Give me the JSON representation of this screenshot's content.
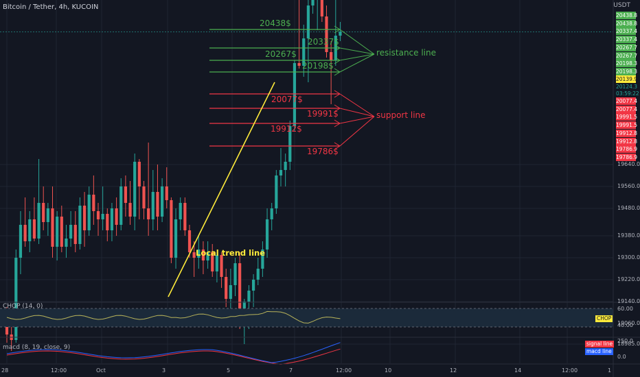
{
  "header": {
    "symbol": "Bitcoin / Tether, 4h, KUCOIN",
    "currency": "USDT"
  },
  "colors": {
    "background": "#131722",
    "bull": "#26a69a",
    "bear": "#ef5350",
    "resistance": "#4caf50",
    "support": "#f23645",
    "trend": "#ffeb3b",
    "chop": "#b9b45a",
    "signal": "#f23645",
    "macd": "#2962ff"
  },
  "price_axis": {
    "labels": [
      "19640.0",
      "19560.0",
      "19480.0",
      "19380.0",
      "19300.0",
      "19220.0",
      "19140.0",
      "19060.0",
      "18985.0"
    ]
  },
  "price_tags": {
    "resistance": [
      "20438.8",
      "20438.8",
      "20337.4",
      "20337.4",
      "20267.7",
      "20267.7",
      "20198.3",
      "20198.3"
    ],
    "current": "20139.9",
    "last_price": "20124.3",
    "countdown": "03:59:22",
    "support": [
      "20077.4",
      "20077.4",
      "19991.5",
      "19991.5",
      "19912.8",
      "19912.8",
      "19786.9",
      "19786.9"
    ]
  },
  "time_axis": {
    "labels": [
      "28",
      "12:00",
      "Oct",
      "3",
      "5",
      "7",
      "12:00",
      "10",
      "12",
      "14",
      "12:00",
      "1"
    ]
  },
  "annotations": {
    "resistance_levels": [
      "20438$",
      "20337$",
      "20267$",
      "20198$"
    ],
    "support_levels": [
      "20077$",
      "19991$",
      "19912$",
      "19786$"
    ],
    "resistance_label": "resistance line",
    "support_label": "support line",
    "trend_label": "Local trend line"
  },
  "chop_pane": {
    "title": "CHOP (14, 0)",
    "axis": [
      "60.00",
      "40.00"
    ],
    "tag": "CHOP"
  },
  "macd_pane": {
    "title": "macd (8, 19, close, 9)",
    "axis": [
      "250.0",
      "0.0"
    ],
    "signal_label": "signal line",
    "macd_label": "macd line"
  },
  "chart_data": {
    "type": "candlestick",
    "symbol": "Bitcoin / Tether",
    "interval": "4h",
    "exchange": "KUCOIN",
    "candles": [
      {
        "o": 19080,
        "h": 19120,
        "l": 18990,
        "c": 19020
      },
      {
        "o": 19020,
        "h": 19060,
        "l": 18960,
        "c": 19000
      },
      {
        "o": 19000,
        "h": 19330,
        "l": 18990,
        "c": 19300
      },
      {
        "o": 19300,
        "h": 19470,
        "l": 19240,
        "c": 19420
      },
      {
        "o": 19420,
        "h": 19520,
        "l": 19340,
        "c": 19360
      },
      {
        "o": 19360,
        "h": 19470,
        "l": 19320,
        "c": 19440
      },
      {
        "o": 19440,
        "h": 19520,
        "l": 19360,
        "c": 19370
      },
      {
        "o": 19370,
        "h": 19660,
        "l": 19350,
        "c": 19500
      },
      {
        "o": 19500,
        "h": 19560,
        "l": 19400,
        "c": 19430
      },
      {
        "o": 19430,
        "h": 19500,
        "l": 19380,
        "c": 19480
      },
      {
        "o": 19480,
        "h": 19560,
        "l": 19300,
        "c": 19340
      },
      {
        "o": 19340,
        "h": 19470,
        "l": 19290,
        "c": 19450
      },
      {
        "o": 19450,
        "h": 19490,
        "l": 19320,
        "c": 19340
      },
      {
        "o": 19340,
        "h": 19420,
        "l": 19300,
        "c": 19370
      },
      {
        "o": 19370,
        "h": 19470,
        "l": 19340,
        "c": 19420
      },
      {
        "o": 19420,
        "h": 19470,
        "l": 19320,
        "c": 19350
      },
      {
        "o": 19350,
        "h": 19520,
        "l": 19330,
        "c": 19490
      },
      {
        "o": 19490,
        "h": 19540,
        "l": 19340,
        "c": 19400
      },
      {
        "o": 19400,
        "h": 19560,
        "l": 19380,
        "c": 19530
      },
      {
        "o": 19530,
        "h": 19600,
        "l": 19420,
        "c": 19470
      },
      {
        "o": 19470,
        "h": 19500,
        "l": 19380,
        "c": 19440
      },
      {
        "o": 19440,
        "h": 19560,
        "l": 19400,
        "c": 19460
      },
      {
        "o": 19460,
        "h": 19480,
        "l": 19360,
        "c": 19400
      },
      {
        "o": 19400,
        "h": 19500,
        "l": 19360,
        "c": 19480
      },
      {
        "o": 19480,
        "h": 19520,
        "l": 19380,
        "c": 19420
      },
      {
        "o": 19420,
        "h": 19590,
        "l": 19400,
        "c": 19560
      },
      {
        "o": 19560,
        "h": 19600,
        "l": 19450,
        "c": 19500
      },
      {
        "o": 19500,
        "h": 19580,
        "l": 19420,
        "c": 19450
      },
      {
        "o": 19450,
        "h": 19680,
        "l": 19400,
        "c": 19650
      },
      {
        "o": 19650,
        "h": 19660,
        "l": 19440,
        "c": 19560
      },
      {
        "o": 19560,
        "h": 19580,
        "l": 19440,
        "c": 19480
      },
      {
        "o": 19480,
        "h": 19720,
        "l": 19380,
        "c": 19440
      },
      {
        "o": 19440,
        "h": 19620,
        "l": 19400,
        "c": 19540
      },
      {
        "o": 19540,
        "h": 19640,
        "l": 19400,
        "c": 19450
      },
      {
        "o": 19450,
        "h": 19590,
        "l": 19430,
        "c": 19560
      },
      {
        "o": 19560,
        "h": 19630,
        "l": 19480,
        "c": 19510
      },
      {
        "o": 19510,
        "h": 19520,
        "l": 19280,
        "c": 19300
      },
      {
        "o": 19300,
        "h": 19480,
        "l": 19260,
        "c": 19440
      },
      {
        "o": 19440,
        "h": 19520,
        "l": 19400,
        "c": 19500
      },
      {
        "o": 19500,
        "h": 19520,
        "l": 19380,
        "c": 19400
      },
      {
        "o": 19400,
        "h": 19420,
        "l": 19300,
        "c": 19320
      },
      {
        "o": 19320,
        "h": 19360,
        "l": 19230,
        "c": 19300
      },
      {
        "o": 19300,
        "h": 19380,
        "l": 19260,
        "c": 19330
      },
      {
        "o": 19330,
        "h": 19360,
        "l": 19240,
        "c": 19290
      },
      {
        "o": 19290,
        "h": 19360,
        "l": 19260,
        "c": 19320
      },
      {
        "o": 19320,
        "h": 19350,
        "l": 19230,
        "c": 19250
      },
      {
        "o": 19250,
        "h": 19320,
        "l": 19210,
        "c": 19310
      },
      {
        "o": 19310,
        "h": 19320,
        "l": 19190,
        "c": 19230
      },
      {
        "o": 19230,
        "h": 19260,
        "l": 19120,
        "c": 19150
      },
      {
        "o": 19150,
        "h": 19260,
        "l": 19100,
        "c": 19200
      },
      {
        "o": 19200,
        "h": 19300,
        "l": 19160,
        "c": 19280
      },
      {
        "o": 19280,
        "h": 19320,
        "l": 19040,
        "c": 19060
      },
      {
        "o": 19060,
        "h": 19150,
        "l": 18985,
        "c": 19140
      },
      {
        "o": 19140,
        "h": 19200,
        "l": 19040,
        "c": 19180
      },
      {
        "o": 19180,
        "h": 19240,
        "l": 19120,
        "c": 19220
      },
      {
        "o": 19220,
        "h": 19300,
        "l": 19200,
        "c": 19260
      },
      {
        "o": 19260,
        "h": 19360,
        "l": 19230,
        "c": 19330
      },
      {
        "o": 19330,
        "h": 19480,
        "l": 19300,
        "c": 19440
      },
      {
        "o": 19440,
        "h": 19500,
        "l": 19400,
        "c": 19480
      },
      {
        "o": 19480,
        "h": 19620,
        "l": 19460,
        "c": 19600
      },
      {
        "o": 19600,
        "h": 19700,
        "l": 19560,
        "c": 19620
      },
      {
        "o": 19620,
        "h": 19680,
        "l": 19560,
        "c": 19650
      },
      {
        "o": 19650,
        "h": 19800,
        "l": 19620,
        "c": 19780
      },
      {
        "o": 19780,
        "h": 20020,
        "l": 19760,
        "c": 20010
      },
      {
        "o": 20010,
        "h": 20240,
        "l": 19990,
        "c": 20000
      },
      {
        "o": 20000,
        "h": 20150,
        "l": 19960,
        "c": 20100
      },
      {
        "o": 20100,
        "h": 20280,
        "l": 19940,
        "c": 20220
      },
      {
        "o": 20220,
        "h": 20450,
        "l": 20190,
        "c": 20270
      },
      {
        "o": 20270,
        "h": 20320,
        "l": 20130,
        "c": 20320
      },
      {
        "o": 20320,
        "h": 20360,
        "l": 20160,
        "c": 20180
      },
      {
        "o": 20180,
        "h": 20220,
        "l": 20030,
        "c": 20050
      },
      {
        "o": 20050,
        "h": 20090,
        "l": 19860,
        "c": 20020
      },
      {
        "o": 20020,
        "h": 20320,
        "l": 20000,
        "c": 20110
      },
      {
        "o": 20110,
        "h": 20160,
        "l": 20090,
        "c": 20124.3
      }
    ],
    "annotations": {
      "resistance_levels": [
        20438,
        20337,
        20267,
        20198
      ],
      "support_levels": [
        20077,
        19991,
        19912,
        19786
      ]
    },
    "chop": {
      "name": "CHOP (14, 0)",
      "axis": [
        40,
        60
      ]
    },
    "macd": {
      "name": "macd (8, 19, close, 9)",
      "axis": [
        0,
        250
      ]
    }
  }
}
